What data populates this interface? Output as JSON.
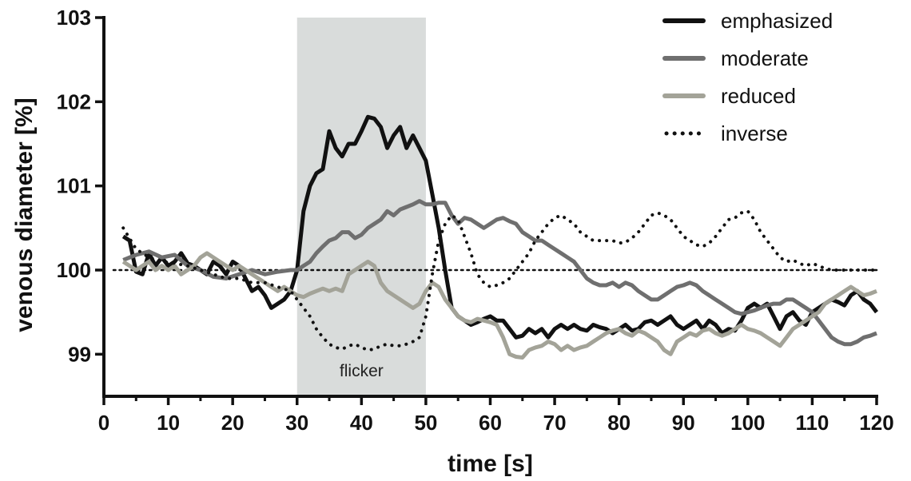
{
  "chart_data": {
    "type": "line",
    "xlabel": "time [s]",
    "ylabel": "venous diameter [%]",
    "xlim": [
      0,
      120
    ],
    "ylim": [
      98.5,
      103
    ],
    "xticks": [
      "0",
      "10",
      "20",
      "30",
      "40",
      "50",
      "60",
      "70",
      "80",
      "90",
      "100",
      "110",
      "120"
    ],
    "yticks": [
      "99",
      "100",
      "101",
      "102",
      "103"
    ],
    "grid": false,
    "legend_position": "top-right",
    "shaded_region": {
      "x_start": 30,
      "x_end": 50,
      "label": "flicker",
      "color": "#d9dcdb"
    },
    "reference_line": {
      "y": 100,
      "style": "dotted"
    },
    "series": [
      {
        "name": "emphasized",
        "color": "#111111",
        "style": "solid",
        "x": [
          3,
          4,
          5,
          6,
          7,
          8,
          9,
          10,
          11,
          12,
          13,
          14,
          15,
          16,
          17,
          18,
          19,
          20,
          21,
          22,
          23,
          24,
          25,
          26,
          27,
          28,
          29,
          30,
          31,
          32,
          33,
          34,
          35,
          36,
          37,
          38,
          39,
          40,
          41,
          42,
          43,
          44,
          45,
          46,
          47,
          48,
          49,
          50,
          51,
          52,
          53,
          54,
          55,
          56,
          57,
          58,
          59,
          60,
          61,
          62,
          63,
          64,
          65,
          66,
          67,
          68,
          69,
          70,
          71,
          72,
          73,
          74,
          75,
          76,
          77,
          78,
          79,
          80,
          81,
          82,
          83,
          84,
          85,
          86,
          87,
          88,
          89,
          90,
          91,
          92,
          93,
          94,
          95,
          96,
          97,
          98,
          99,
          100,
          101,
          102,
          103,
          104,
          105,
          106,
          107,
          108,
          109,
          110,
          111,
          112,
          113,
          114,
          115,
          116,
          117,
          118,
          119,
          120
        ],
        "y": [
          100.4,
          100.35,
          99.98,
          99.95,
          100.2,
          100.05,
          100.15,
          100.05,
          100.1,
          100.2,
          100.08,
          100.05,
          100.0,
          99.95,
          100.1,
          100.05,
          99.95,
          100.1,
          100.05,
          99.9,
          99.75,
          99.8,
          99.7,
          99.55,
          99.6,
          99.65,
          99.75,
          100.0,
          100.7,
          101.0,
          101.15,
          101.2,
          101.65,
          101.45,
          101.35,
          101.5,
          101.5,
          101.65,
          101.82,
          101.8,
          101.7,
          101.45,
          101.6,
          101.7,
          101.45,
          101.6,
          101.45,
          101.3,
          100.9,
          100.5,
          100.0,
          99.55,
          99.45,
          99.4,
          99.35,
          99.38,
          99.42,
          99.45,
          99.4,
          99.4,
          99.3,
          99.2,
          99.22,
          99.3,
          99.25,
          99.3,
          99.2,
          99.3,
          99.35,
          99.3,
          99.35,
          99.3,
          99.28,
          99.35,
          99.32,
          99.3,
          99.25,
          99.3,
          99.35,
          99.28,
          99.3,
          99.38,
          99.4,
          99.35,
          99.4,
          99.45,
          99.35,
          99.3,
          99.35,
          99.4,
          99.3,
          99.4,
          99.35,
          99.25,
          99.3,
          99.28,
          99.4,
          99.55,
          99.6,
          99.55,
          99.6,
          99.45,
          99.3,
          99.45,
          99.5,
          99.4,
          99.35,
          99.5,
          99.55,
          99.6,
          99.65,
          99.62,
          99.58,
          99.7,
          99.75,
          99.65,
          99.6,
          99.5
        ]
      },
      {
        "name": "moderate",
        "color": "#6f6f6f",
        "style": "solid",
        "x": [
          3,
          5,
          7,
          9,
          11,
          13,
          15,
          17,
          19,
          21,
          23,
          25,
          27,
          29,
          30,
          31,
          32,
          33,
          34,
          35,
          36,
          37,
          38,
          39,
          40,
          41,
          42,
          43,
          44,
          45,
          46,
          47,
          48,
          49,
          50,
          51,
          52,
          53,
          54,
          55,
          56,
          57,
          58,
          59,
          60,
          61,
          62,
          63,
          64,
          65,
          66,
          67,
          68,
          69,
          70,
          71,
          72,
          73,
          74,
          75,
          76,
          77,
          78,
          79,
          80,
          81,
          82,
          83,
          84,
          85,
          86,
          87,
          88,
          89,
          90,
          91,
          92,
          93,
          94,
          95,
          96,
          97,
          98,
          99,
          100,
          101,
          102,
          103,
          104,
          105,
          106,
          107,
          108,
          109,
          110,
          111,
          112,
          113,
          114,
          115,
          116,
          117,
          118,
          119,
          120
        ],
        "y": [
          100.12,
          100.18,
          100.22,
          100.15,
          100.18,
          100.05,
          100.0,
          99.92,
          99.9,
          99.95,
          100.0,
          99.95,
          99.98,
          100.0,
          100.0,
          100.05,
          100.1,
          100.2,
          100.28,
          100.35,
          100.38,
          100.45,
          100.45,
          100.38,
          100.42,
          100.5,
          100.55,
          100.6,
          100.7,
          100.65,
          100.72,
          100.75,
          100.78,
          100.82,
          100.78,
          100.78,
          100.8,
          100.8,
          100.65,
          100.55,
          100.62,
          100.6,
          100.55,
          100.5,
          100.55,
          100.6,
          100.62,
          100.58,
          100.55,
          100.45,
          100.4,
          100.35,
          100.35,
          100.3,
          100.25,
          100.2,
          100.15,
          100.1,
          100.0,
          99.9,
          99.85,
          99.82,
          99.82,
          99.85,
          99.8,
          99.85,
          99.82,
          99.75,
          99.7,
          99.65,
          99.65,
          99.7,
          99.75,
          99.8,
          99.82,
          99.85,
          99.82,
          99.75,
          99.7,
          99.65,
          99.6,
          99.55,
          99.5,
          99.48,
          99.5,
          99.52,
          99.55,
          99.58,
          99.6,
          99.6,
          99.65,
          99.65,
          99.6,
          99.55,
          99.5,
          99.4,
          99.3,
          99.2,
          99.15,
          99.12,
          99.12,
          99.15,
          99.2,
          99.22,
          99.25
        ]
      },
      {
        "name": "reduced",
        "color": "#a3a398",
        "style": "solid",
        "x": [
          3,
          4,
          5,
          6,
          7,
          8,
          9,
          10,
          11,
          12,
          13,
          14,
          15,
          16,
          17,
          18,
          19,
          20,
          21,
          22,
          23,
          24,
          25,
          26,
          27,
          28,
          29,
          30,
          31,
          32,
          33,
          34,
          35,
          36,
          37,
          38,
          39,
          40,
          41,
          42,
          43,
          44,
          45,
          46,
          47,
          48,
          49,
          50,
          51,
          52,
          53,
          54,
          55,
          56,
          57,
          58,
          59,
          60,
          61,
          62,
          63,
          64,
          65,
          66,
          67,
          68,
          69,
          70,
          71,
          72,
          73,
          74,
          75,
          76,
          77,
          78,
          79,
          80,
          81,
          82,
          83,
          84,
          85,
          86,
          87,
          88,
          89,
          90,
          91,
          92,
          93,
          94,
          95,
          96,
          97,
          98,
          99,
          100,
          101,
          102,
          103,
          104,
          105,
          106,
          107,
          108,
          109,
          110,
          111,
          112,
          113,
          114,
          115,
          116,
          117,
          118,
          119,
          120
        ],
        "y": [
          100.1,
          100.05,
          100.0,
          100.05,
          100.1,
          100.0,
          100.05,
          100.0,
          100.05,
          99.95,
          100.0,
          100.05,
          100.15,
          100.2,
          100.15,
          100.1,
          100.05,
          100.0,
          100.05,
          100.0,
          99.95,
          99.9,
          99.85,
          99.8,
          99.75,
          99.8,
          99.75,
          99.7,
          99.68,
          99.72,
          99.75,
          99.78,
          99.75,
          99.78,
          99.75,
          99.95,
          100.0,
          100.05,
          100.1,
          100.05,
          99.85,
          99.75,
          99.7,
          99.65,
          99.6,
          99.55,
          99.6,
          99.75,
          99.85,
          99.8,
          99.65,
          99.55,
          99.45,
          99.4,
          99.38,
          99.42,
          99.4,
          99.38,
          99.35,
          99.2,
          99.0,
          98.97,
          98.96,
          99.05,
          99.08,
          99.1,
          99.15,
          99.12,
          99.05,
          99.1,
          99.05,
          99.08,
          99.1,
          99.15,
          99.2,
          99.25,
          99.28,
          99.3,
          99.25,
          99.22,
          99.28,
          99.25,
          99.2,
          99.15,
          99.05,
          99.0,
          99.15,
          99.2,
          99.25,
          99.22,
          99.28,
          99.3,
          99.25,
          99.22,
          99.25,
          99.3,
          99.35,
          99.3,
          99.28,
          99.25,
          99.2,
          99.15,
          99.1,
          99.2,
          99.3,
          99.35,
          99.4,
          99.45,
          99.5,
          99.6,
          99.65,
          99.7,
          99.75,
          99.8,
          99.75,
          99.7,
          99.72,
          99.75
        ]
      },
      {
        "name": "inverse",
        "color": "#111111",
        "style": "dotted",
        "x": [
          3,
          5,
          7,
          9,
          11,
          13,
          15,
          17,
          19,
          21,
          23,
          25,
          27,
          29,
          30,
          31,
          32,
          33,
          34,
          35,
          36,
          37,
          38,
          39,
          40,
          41,
          42,
          43,
          44,
          45,
          46,
          47,
          48,
          49,
          50,
          51,
          52,
          53,
          54,
          55,
          56,
          57,
          58,
          59,
          60,
          61,
          62,
          63,
          64,
          65,
          66,
          67,
          68,
          69,
          70,
          71,
          72,
          73,
          74,
          75,
          76,
          77,
          78,
          79,
          80,
          81,
          82,
          83,
          84,
          85,
          86,
          87,
          88,
          89,
          90,
          91,
          92,
          93,
          94,
          95,
          96,
          97,
          98,
          99,
          100,
          101,
          102,
          103,
          104,
          105,
          106,
          107,
          108,
          109,
          110,
          111,
          112,
          113,
          114,
          115,
          116,
          117,
          118,
          119,
          120
        ],
        "y": [
          100.5,
          100.25,
          100.15,
          100.1,
          100.08,
          100.05,
          100.0,
          99.95,
          99.9,
          99.9,
          99.85,
          99.85,
          99.8,
          99.75,
          99.65,
          99.55,
          99.45,
          99.3,
          99.2,
          99.12,
          99.08,
          99.06,
          99.1,
          99.12,
          99.08,
          99.05,
          99.06,
          99.1,
          99.12,
          99.1,
          99.1,
          99.12,
          99.15,
          99.2,
          99.45,
          99.95,
          100.35,
          100.55,
          100.65,
          100.6,
          100.4,
          100.2,
          99.95,
          99.85,
          99.8,
          99.82,
          99.85,
          99.9,
          100.0,
          100.1,
          100.2,
          100.35,
          100.45,
          100.55,
          100.62,
          100.65,
          100.6,
          100.55,
          100.45,
          100.4,
          100.35,
          100.35,
          100.35,
          100.35,
          100.32,
          100.33,
          100.38,
          100.45,
          100.55,
          100.65,
          100.68,
          100.65,
          100.6,
          100.5,
          100.4,
          100.35,
          100.3,
          100.28,
          100.32,
          100.4,
          100.5,
          100.6,
          100.62,
          100.68,
          100.7,
          100.6,
          100.45,
          100.35,
          100.25,
          100.15,
          100.1,
          100.12,
          100.08,
          100.05,
          100.08,
          100.05,
          100.02,
          100.0,
          100.0,
          100.0,
          100.0,
          100.0,
          100.0,
          100.0,
          100.0
        ]
      }
    ]
  }
}
